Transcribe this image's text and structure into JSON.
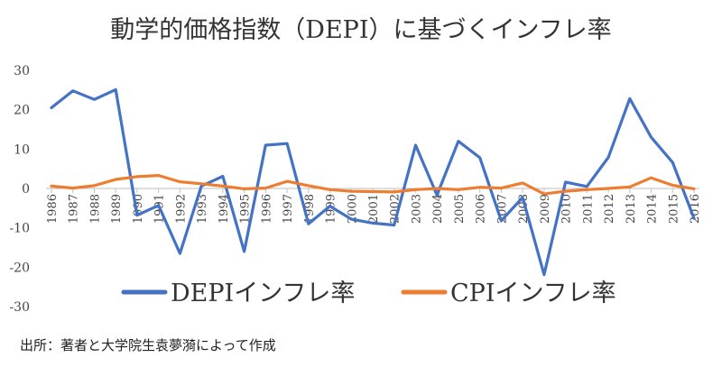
{
  "chart_data": {
    "type": "line",
    "title": "動学的価格指数（DEPI）に基づくインフレ率",
    "categories": [
      "1986",
      "1987",
      "1988",
      "1989",
      "1990",
      "1991",
      "1992",
      "1993",
      "1994",
      "1995",
      "1996",
      "1997",
      "1998",
      "1999",
      "2000",
      "2001",
      "2002",
      "2003",
      "2004",
      "2005",
      "2006",
      "2007",
      "2008",
      "2009",
      "2010",
      "2011",
      "2012",
      "2013",
      "2014",
      "2015",
      "2016"
    ],
    "series": [
      {
        "name": "DEPIインフレ率",
        "color": "#4472C4",
        "values": [
          20.5,
          24.8,
          22.6,
          25.1,
          -6.8,
          -4.3,
          -16.5,
          0.6,
          3.1,
          -16.0,
          11.0,
          11.4,
          -9.0,
          -4.5,
          -7.8,
          -8.8,
          -9.3,
          11.0,
          -1.7,
          12.0,
          7.8,
          -8.2,
          -2.3,
          -21.9,
          1.6,
          0.5,
          7.9,
          22.8,
          13.0,
          6.6,
          -7.6
        ]
      },
      {
        "name": "CPIインフレ率",
        "color": "#ED7D31",
        "values": [
          0.6,
          0.1,
          0.7,
          2.3,
          3.0,
          3.3,
          1.7,
          1.2,
          0.6,
          -0.1,
          0.1,
          1.8,
          0.7,
          -0.3,
          -0.7,
          -0.8,
          -0.9,
          -0.3,
          0.0,
          -0.3,
          0.3,
          0.1,
          1.4,
          -1.4,
          -0.7,
          -0.3,
          0.0,
          0.4,
          2.7,
          0.8,
          -0.1
        ]
      }
    ],
    "ylim": [
      -30,
      30
    ],
    "yticks": [
      30,
      20,
      10,
      0,
      -10,
      -20,
      -30
    ],
    "legend_position": "bottom-center",
    "grid": false
  },
  "source_note": "出所：著者と大学院生袁夢漪によって作成"
}
